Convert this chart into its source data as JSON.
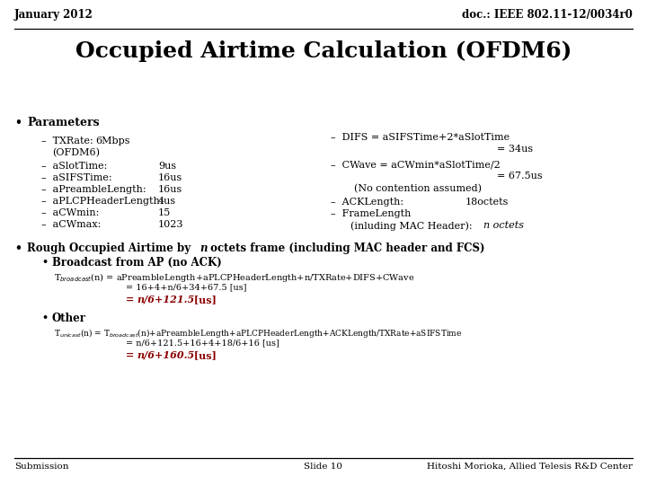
{
  "header_left": "January 2012",
  "header_right": "doc.: IEEE 802.11-12/0034r0",
  "title": "Occupied Airtime Calculation (OFDM6)",
  "footer_left": "Submission",
  "footer_center": "Slide 10",
  "footer_right": "Hitoshi Morioka, Allied Telesis R&D Center",
  "bg_color": "#ffffff",
  "text_color": "#000000",
  "red_color": "#8b0000"
}
